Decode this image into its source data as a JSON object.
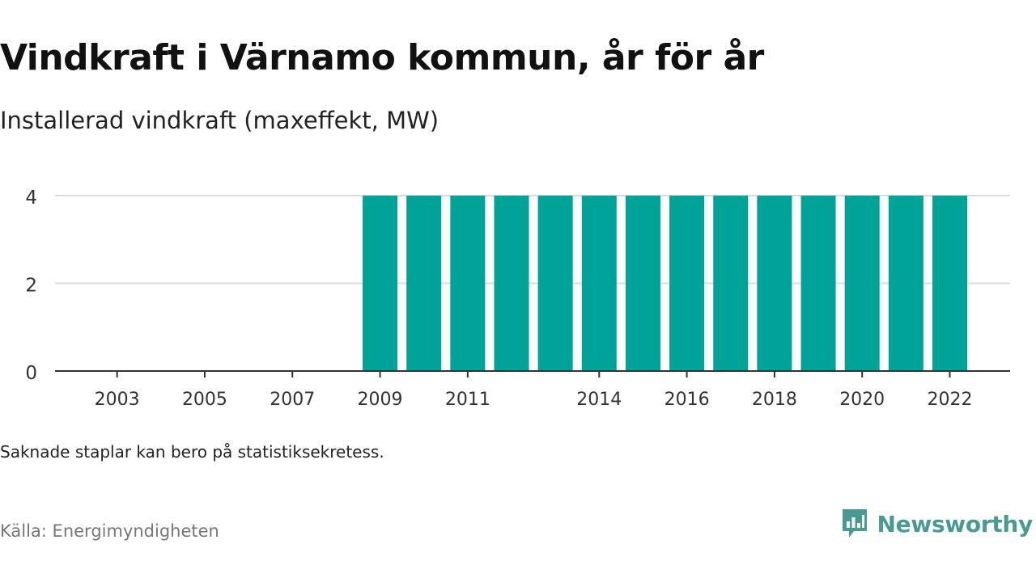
{
  "title": "Vindkraft i Värnamo kommun, år för år",
  "subtitle": "Installerad vindkraft (maxeffekt, MW)",
  "note": "Saknade staplar kan bero på statistiksekretess.",
  "source": "Källa: Energimyndigheten",
  "brand": {
    "name": "Newsworthy",
    "icon": "newsworthy-logo-icon"
  },
  "colors": {
    "bar": "#00a398",
    "grid": "#dcdcdc",
    "axis": "#333333",
    "brand": "#4a9a94"
  },
  "chart_data": {
    "type": "bar",
    "title": "Vindkraft i Värnamo kommun, år för år",
    "ylabel": "Installerad vindkraft (maxeffekt, MW)",
    "xlabel": "",
    "x": [
      2002,
      2003,
      2004,
      2005,
      2006,
      2007,
      2008,
      2009,
      2010,
      2011,
      2012,
      2013,
      2014,
      2015,
      2016,
      2017,
      2018,
      2019,
      2020,
      2021,
      2022
    ],
    "values": [
      null,
      null,
      null,
      null,
      null,
      null,
      null,
      4,
      4,
      4,
      4,
      4,
      4,
      4,
      4,
      4,
      4,
      4,
      4,
      4,
      4
    ],
    "x_ticks": [
      2003,
      2005,
      2007,
      2009,
      2011,
      2014,
      2016,
      2018,
      2020,
      2022
    ],
    "y_ticks": [
      0,
      2,
      4
    ],
    "ylim": [
      0,
      4
    ],
    "grid": "horizontal",
    "legend": "none"
  }
}
